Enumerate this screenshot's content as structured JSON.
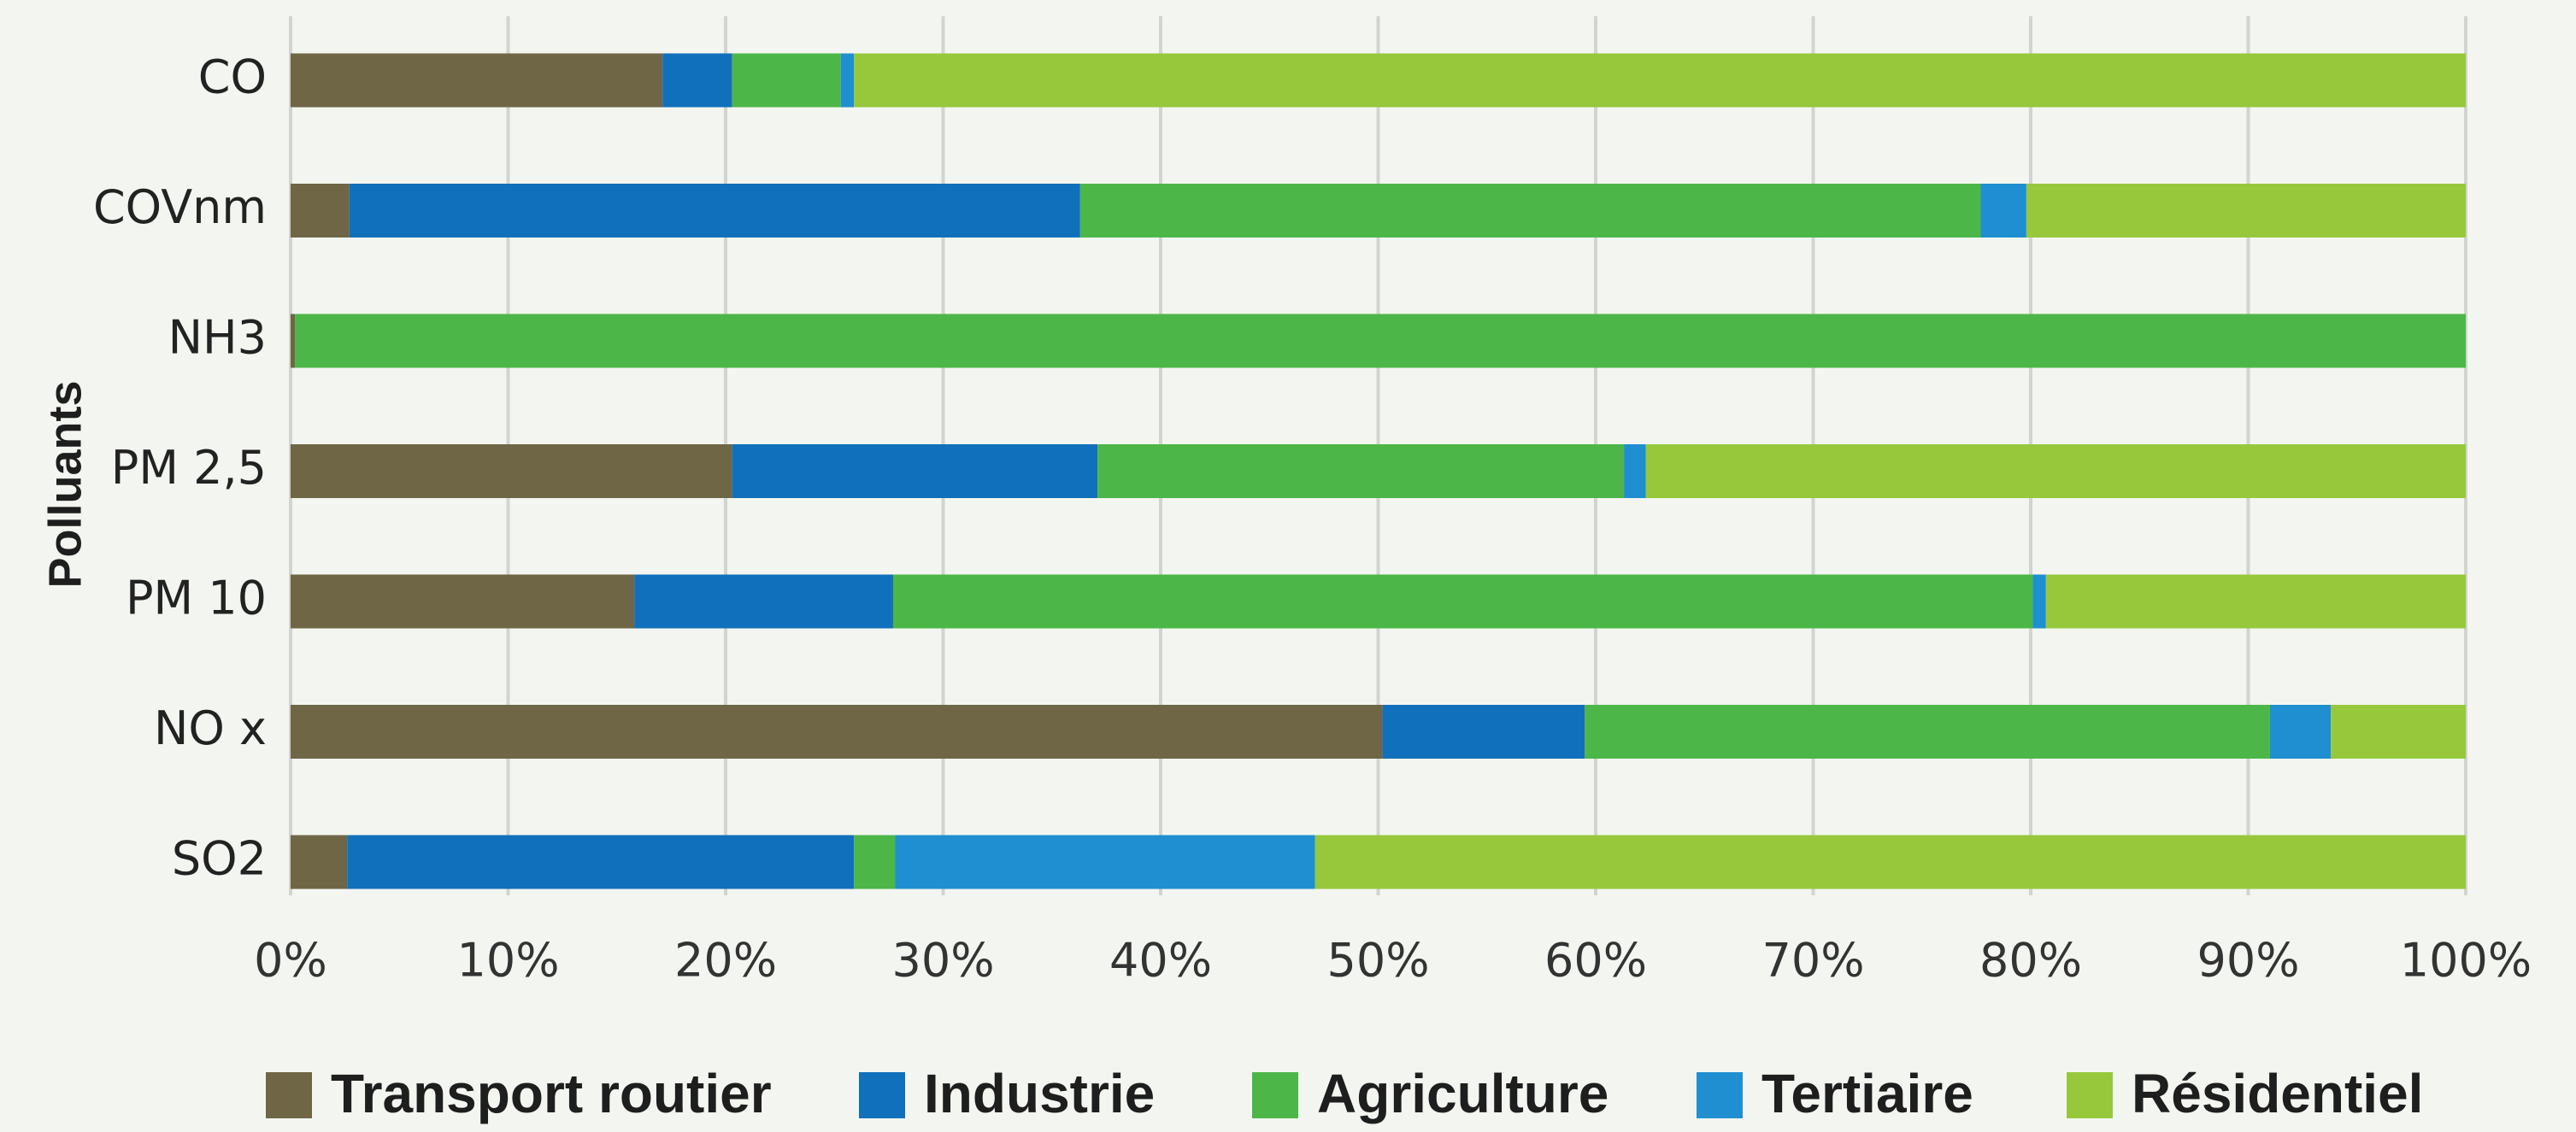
{
  "chart_data": {
    "type": "stacked-barh",
    "y_label": "Polluants",
    "categories": [
      "CO",
      "COVnm",
      "NH3",
      "PM 2,5",
      "PM 10",
      "NO x",
      "SO2"
    ],
    "series": [
      {
        "name": "Transport routier",
        "color": "#6e6645",
        "values": [
          17.1,
          2.7,
          0.2,
          20.3,
          15.8,
          50.2,
          2.6
        ]
      },
      {
        "name": "Industrie",
        "color": "#1170bb",
        "values": [
          3.2,
          33.6,
          0,
          16.8,
          11.9,
          9.3,
          23.3
        ]
      },
      {
        "name": "Agriculture",
        "color": "#4cb748",
        "values": [
          5.0,
          41.4,
          99.8,
          24.2,
          52.4,
          31.5,
          1.9
        ]
      },
      {
        "name": "Tertiaire",
        "color": "#1f8fd1",
        "values": [
          0.6,
          2.1,
          0,
          1.0,
          0.6,
          2.8,
          19.3
        ]
      },
      {
        "name": "Résidentiel",
        "color": "#97c83c",
        "values": [
          74.1,
          20.2,
          0,
          37.7,
          19.3,
          6.2,
          52.9
        ]
      }
    ],
    "xlim": [
      0,
      100
    ],
    "xticks": [
      {
        "value": 0,
        "label": "0%"
      },
      {
        "value": 10,
        "label": "10%"
      },
      {
        "value": 20,
        "label": "20%"
      },
      {
        "value": 30,
        "label": "30%"
      },
      {
        "value": 40,
        "label": "40%"
      },
      {
        "value": 50,
        "label": "50%"
      },
      {
        "value": 60,
        "label": "60%"
      },
      {
        "value": 70,
        "label": "70%"
      },
      {
        "value": 80,
        "label": "80%"
      },
      {
        "value": 90,
        "label": "90%"
      },
      {
        "value": 100,
        "label": "100%"
      }
    ],
    "grid": true,
    "legend": "bottom"
  }
}
